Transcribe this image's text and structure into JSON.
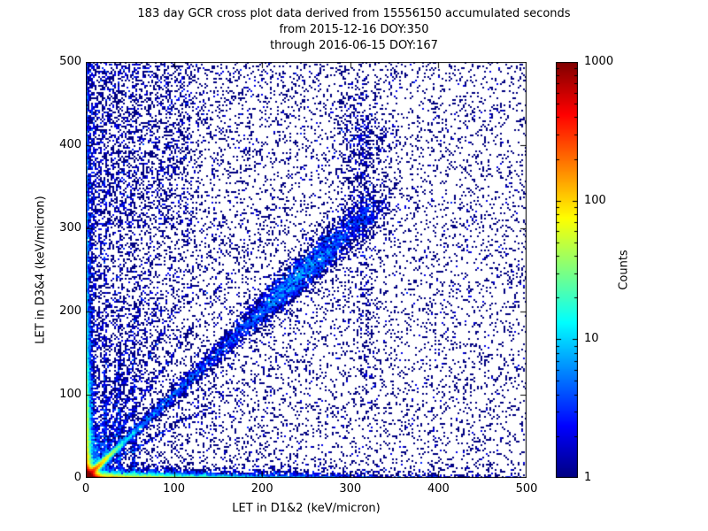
{
  "chart_data": {
    "type": "heatmap",
    "subtype": "2d-histogram cross plot (density scatter)",
    "title": "183 day GCR cross plot data derived from 15556150 accumulated seconds",
    "subtitle1": "from 2015-12-16 DOY:350",
    "subtitle2": "through 2016-06-15 DOY:167",
    "xlabel": "LET in D1&2 (keV/micron)",
    "ylabel": "LET in D3&4 (keV/micron)",
    "xlim": [
      0,
      500
    ],
    "ylim": [
      0,
      500
    ],
    "xticks": [
      0,
      100,
      200,
      300,
      400,
      500
    ],
    "yticks": [
      0,
      100,
      200,
      300,
      400,
      500
    ],
    "grid": false,
    "background": "#ffffff",
    "colorbar": {
      "label": "Counts",
      "scale": "log",
      "min": 1,
      "max": 1000,
      "ticks": [
        1,
        10,
        100,
        1000
      ],
      "colormap": "jet"
    },
    "density_model": {
      "seed": 20151216,
      "components": [
        {
          "kind": "exp2d",
          "n": 40000,
          "sx": 3.2,
          "sy": 3.2
        },
        {
          "kind": "diag",
          "n": 9000,
          "t_exp": 11,
          "width": 1.6
        },
        {
          "kind": "exp2d",
          "n": 7000,
          "sx": 55,
          "sy": 2.2
        },
        {
          "kind": "exp2d",
          "n": 7000,
          "sx": 2.2,
          "sy": 55
        },
        {
          "kind": "exp2d",
          "n": 2500,
          "sx": 150,
          "sy": 3
        },
        {
          "kind": "exp2d",
          "n": 2500,
          "sx": 3,
          "sy": 150
        },
        {
          "kind": "diagband",
          "n": 3400,
          "t0": 10,
          "t1": 330,
          "w0": 2,
          "wk": 0.02
        },
        {
          "kind": "diagcluster",
          "n": 2600,
          "tmean": 243,
          "tsd": 38,
          "w0": 2,
          "wk": 0.03
        },
        {
          "kind": "ray",
          "n": 420,
          "slope": 1.5,
          "scale": 55,
          "width": 1.6
        },
        {
          "kind": "ray",
          "n": 380,
          "slope": 2.0,
          "scale": 50,
          "width": 1.6
        },
        {
          "kind": "ray",
          "n": 340,
          "slope": 2.6,
          "scale": 45,
          "width": 1.6
        },
        {
          "kind": "ray",
          "n": 300,
          "slope": 3.4,
          "scale": 40,
          "width": 1.6
        },
        {
          "kind": "ray",
          "n": 300,
          "slope": 0.62,
          "scale": 70,
          "width": 1.6
        },
        {
          "kind": "vstreak",
          "n": 320,
          "x": 22,
          "sx": 1.0,
          "yscale": 130
        },
        {
          "kind": "vstreak",
          "n": 260,
          "x": 38,
          "sx": 1.2,
          "yscale": 110
        },
        {
          "kind": "vstreak",
          "n": 220,
          "x": 55,
          "sx": 1.4,
          "yscale": 95
        },
        {
          "kind": "vstreak",
          "n": 300,
          "x": 318,
          "sx": 6,
          "y0": 100,
          "y1": 440
        },
        {
          "kind": "cluster",
          "n": 420,
          "x": 312,
          "y": 395,
          "sx": 16,
          "sy": 42
        },
        {
          "kind": "uniform",
          "n": 5200,
          "x0": 0,
          "x1": 500,
          "y0": 0,
          "y1": 500
        },
        {
          "kind": "leftpow",
          "n": 7500,
          "pow": 2.3
        },
        {
          "kind": "uniform",
          "n": 1200,
          "x0": 0,
          "x1": 120,
          "y0": 300,
          "y1": 500
        }
      ]
    }
  }
}
